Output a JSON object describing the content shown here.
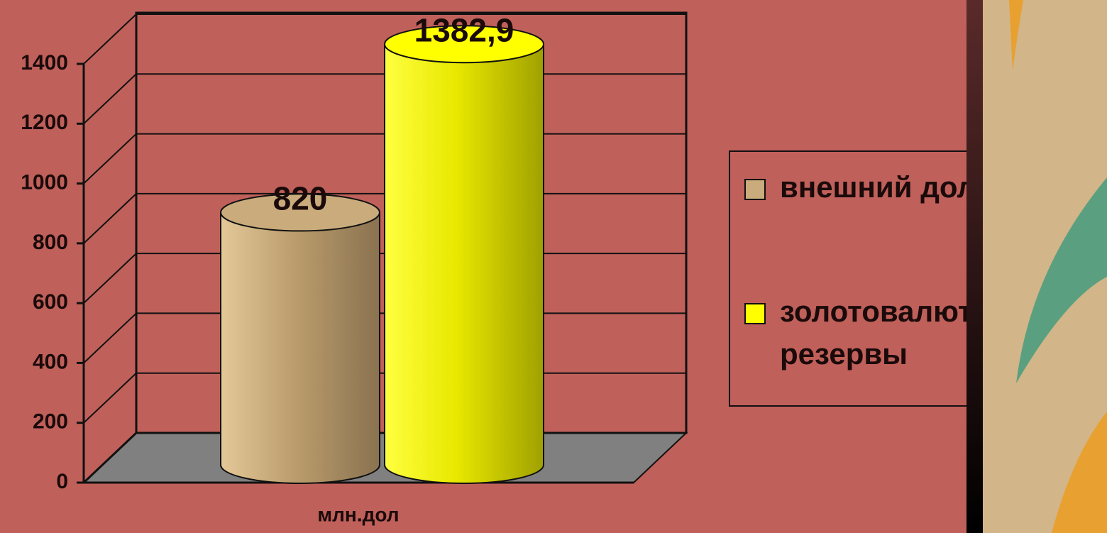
{
  "chart_data": {
    "type": "cylinder-bar",
    "categories": [
      "млн.дол"
    ],
    "series": [
      {
        "name": "внешний долг",
        "color": "#c9ab7c",
        "values": [
          820
        ]
      },
      {
        "name": "золотовалютные резервы",
        "color": "#ffff00",
        "values": [
          1382.9
        ],
        "value_labels": [
          "1382,9"
        ]
      }
    ],
    "ylim": [
      0,
      1600
    ],
    "yticks": [
      0,
      200,
      400,
      600,
      800,
      1000,
      1200,
      1400
    ],
    "grid": true,
    "legend": "right"
  }
}
